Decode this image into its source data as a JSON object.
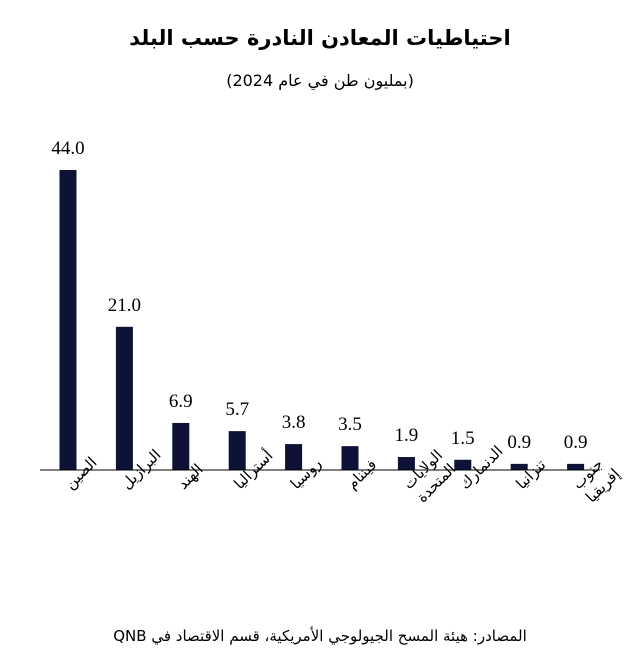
{
  "chart_data": {
    "type": "bar",
    "title": "احتياطيات المعادن النادرة حسب البلد",
    "subtitle": "(بمليون طن في عام 2024)",
    "categories": [
      "الصين",
      "البرازيل",
      "الهند",
      "أستراليا",
      "روسيا",
      "فيتنام",
      "الولايات المتحدة",
      "الدنمارك",
      "تنزانيا",
      "جنوب إفريقيا"
    ],
    "values": [
      44.0,
      21.0,
      6.9,
      5.7,
      3.8,
      3.5,
      1.9,
      1.5,
      0.9,
      0.9
    ],
    "value_labels": [
      "44.0",
      "21.0",
      "6.9",
      "5.7",
      "3.8",
      "3.5",
      "1.9",
      "1.5",
      "0.9",
      "0.9"
    ],
    "ylim": [
      0,
      44
    ],
    "grid": false,
    "bar_color": "#0d1236",
    "source": "المصادر: هيئة المسح الجيولوجي الأمريكية، قسم الاقتصاد في QNB"
  }
}
